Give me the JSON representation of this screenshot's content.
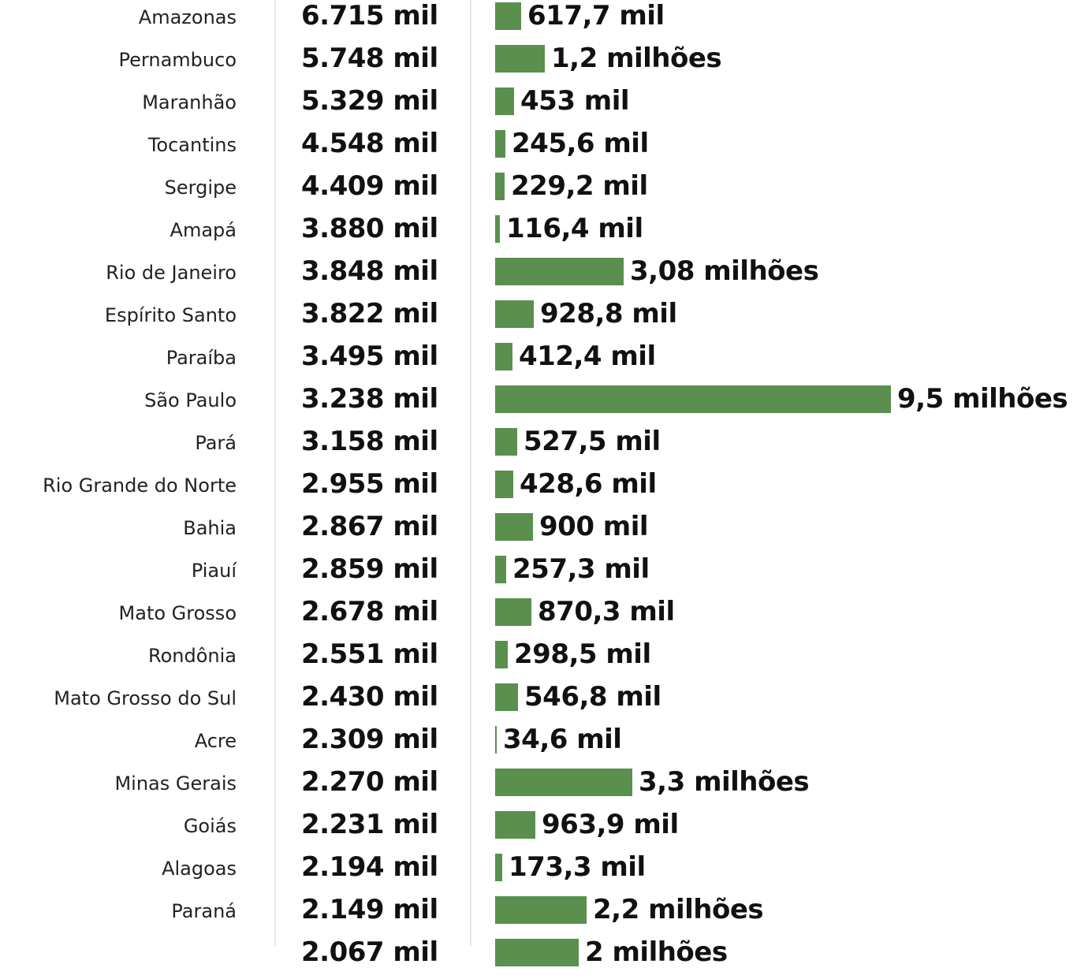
{
  "chart_data": {
    "type": "table",
    "color": "#5a8f4e",
    "rows": [
      {
        "state": "Amazonas",
        "rate": "6.715 mil",
        "population_label": "617,7 mil",
        "population": 617700
      },
      {
        "state": "Pernambuco",
        "rate": "5.748 mil",
        "population_label": "1,2 milhões",
        "population": 1200000
      },
      {
        "state": "Maranhão",
        "rate": "5.329 mil",
        "population_label": "453 mil",
        "population": 453000
      },
      {
        "state": "Tocantins",
        "rate": "4.548 mil",
        "population_label": "245,6 mil",
        "population": 245600
      },
      {
        "state": "Sergipe",
        "rate": "4.409 mil",
        "population_label": "229,2 mil",
        "population": 229200
      },
      {
        "state": "Amapá",
        "rate": "3.880 mil",
        "population_label": "116,4 mil",
        "population": 116400
      },
      {
        "state": "Rio de Janeiro",
        "rate": "3.848 mil",
        "population_label": "3,08 milhões",
        "population": 3080000
      },
      {
        "state": "Espírito Santo",
        "rate": "3.822 mil",
        "population_label": "928,8 mil",
        "population": 928800
      },
      {
        "state": "Paraíba",
        "rate": "3.495 mil",
        "population_label": "412,4 mil",
        "population": 412400
      },
      {
        "state": "São Paulo",
        "rate": "3.238 mil",
        "population_label": "9,5 milhões",
        "population": 9500000
      },
      {
        "state": "Pará",
        "rate": "3.158 mil",
        "population_label": "527,5 mil",
        "population": 527500
      },
      {
        "state": "Rio Grande do Norte",
        "rate": "2.955 mil",
        "population_label": "428,6 mil",
        "population": 428600
      },
      {
        "state": "Bahia",
        "rate": "2.867 mil",
        "population_label": "900 mil",
        "population": 900000
      },
      {
        "state": "Piauí",
        "rate": "2.859 mil",
        "population_label": "257,3 mil",
        "population": 257300
      },
      {
        "state": "Mato Grosso",
        "rate": "2.678 mil",
        "population_label": "870,3 mil",
        "population": 870300
      },
      {
        "state": "Rondônia",
        "rate": "2.551 mil",
        "population_label": "298,5 mil",
        "population": 298500
      },
      {
        "state": "Mato Grosso do Sul",
        "rate": "2.430 mil",
        "population_label": "546,8 mil",
        "population": 546800
      },
      {
        "state": "Acre",
        "rate": "2.309 mil",
        "population_label": "34,6 mil",
        "population": 34600
      },
      {
        "state": "Minas Gerais",
        "rate": "2.270 mil",
        "population_label": "3,3 milhões",
        "population": 3300000
      },
      {
        "state": "Goiás",
        "rate": "2.231 mil",
        "population_label": "963,9 mil",
        "population": 963900
      },
      {
        "state": "Alagoas",
        "rate": "2.194 mil",
        "population_label": "173,3 mil",
        "population": 173300
      },
      {
        "state": "Paraná",
        "rate": "2.149 mil",
        "population_label": "2,2 milhões",
        "population": 2200000
      },
      {
        "state": "",
        "rate": "2.067 mil",
        "population_label": "2 milhões",
        "population": 2000000
      }
    ]
  }
}
